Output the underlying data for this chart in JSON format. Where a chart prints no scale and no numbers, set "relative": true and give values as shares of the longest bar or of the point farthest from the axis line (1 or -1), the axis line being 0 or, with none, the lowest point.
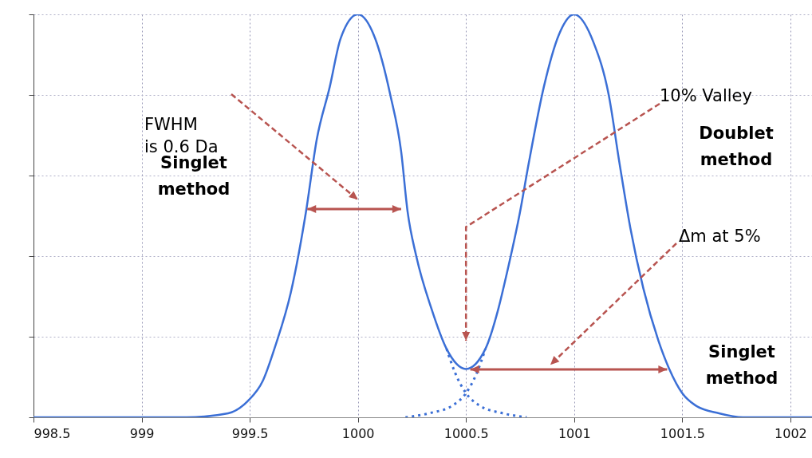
{
  "chart_data": {
    "type": "line",
    "relative": true,
    "grid": true,
    "xlim": [
      998.5,
      1002.1
    ],
    "xticks": [
      998.5,
      999,
      999.5,
      1000,
      1000.5,
      1001,
      1001.5,
      1002
    ],
    "series": [
      {
        "color": "#3b6fd6",
        "line_style": "solid",
        "x": [
          998.5,
          999.21,
          999.4,
          999.49,
          999.56,
          999.62,
          999.69,
          999.76,
          999.81,
          999.87,
          999.92,
          1000,
          1000.08,
          1000.15,
          1000.2,
          1000.23,
          1000.27,
          1000.34,
          1000.41,
          1000.5,
          1000.59,
          1000.65,
          1000.69,
          1000.75,
          1000.79,
          1000.86,
          1000.93,
          1001,
          1001.09,
          1001.16,
          1001.21,
          1001.26,
          1001.32,
          1001.39,
          1001.44,
          1001.5,
          1001.56,
          1001.67,
          1001.78,
          1002.1
        ],
        "values": [
          0,
          0,
          0.01,
          0.04,
          0.09,
          0.18,
          0.31,
          0.51,
          0.69,
          0.82,
          0.94,
          1,
          0.94,
          0.8,
          0.66,
          0.51,
          0.4,
          0.27,
          0.17,
          0.12,
          0.17,
          0.27,
          0.36,
          0.51,
          0.63,
          0.82,
          0.95,
          1,
          0.93,
          0.8,
          0.63,
          0.47,
          0.32,
          0.19,
          0.12,
          0.06,
          0.03,
          0.01,
          0,
          0
        ]
      },
      {
        "color": "#3b6fd6",
        "line_style": "dotted",
        "x": [
          1000.41,
          1000.45,
          1000.5,
          1000.56,
          1000.67,
          1000.78
        ],
        "values": [
          0.17,
          0.11,
          0.06,
          0.03,
          0.01,
          0
        ]
      },
      {
        "color": "#3b6fd6",
        "line_style": "dotted",
        "x": [
          1000.22,
          1000.33,
          1000.44,
          1000.5,
          1000.55,
          1000.59
        ],
        "values": [
          0,
          0.01,
          0.03,
          0.06,
          0.11,
          0.17
        ]
      }
    ],
    "annotations": [
      "FWHM\nis 0.6 Da",
      "Singlet\nmethod",
      "10% Valley",
      "Doublet\nmethod",
      "Δm at 5%",
      "Singlet\nmethod"
    ]
  }
}
